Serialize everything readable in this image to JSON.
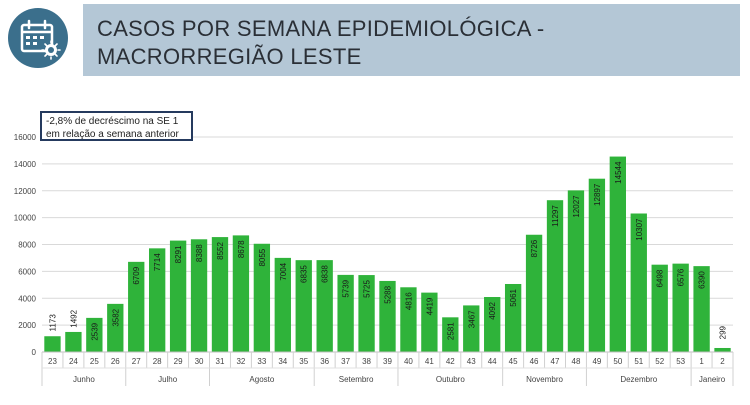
{
  "header": {
    "title_line1": "CASOS POR SEMANA EPIDEMIOLÓGICA -",
    "title_line2": "MACRORREGIÃO LESTE",
    "icon": "calendar-virus-icon",
    "icon_bg": "#3b6f8c",
    "bar_bg": "#b4c7d6"
  },
  "chart_data": {
    "type": "bar",
    "annotation": "-2,8% de decréscimo na SE 1 em relação a semana anterior",
    "categories": [
      "23",
      "24",
      "25",
      "26",
      "27",
      "28",
      "29",
      "30",
      "31",
      "32",
      "33",
      "34",
      "35",
      "36",
      "37",
      "38",
      "39",
      "40",
      "41",
      "42",
      "43",
      "44",
      "45",
      "46",
      "47",
      "48",
      "49",
      "50",
      "51",
      "52",
      "53",
      "1",
      "2"
    ],
    "values": [
      1173,
      1492,
      2539,
      3582,
      6709,
      7714,
      8291,
      8388,
      8552,
      8678,
      8055,
      7004,
      6835,
      6838,
      5739,
      5725,
      5288,
      4816,
      4419,
      2581,
      3467,
      4092,
      5061,
      8726,
      11297,
      12027,
      12897,
      14544,
      10307,
      6498,
      6576,
      6390,
      299
    ],
    "months": [
      {
        "label": "Junho",
        "start": 0,
        "end": 3
      },
      {
        "label": "Julho",
        "start": 4,
        "end": 7
      },
      {
        "label": "Agosto",
        "start": 8,
        "end": 12
      },
      {
        "label": "Setembro",
        "start": 13,
        "end": 16
      },
      {
        "label": "Outubro",
        "start": 17,
        "end": 21
      },
      {
        "label": "Novembro",
        "start": 22,
        "end": 25
      },
      {
        "label": "Dezembro",
        "start": 26,
        "end": 30
      },
      {
        "label": "Janeiro",
        "start": 31,
        "end": 32
      }
    ],
    "yticks": [
      0,
      2000,
      4000,
      6000,
      8000,
      10000,
      12000,
      14000,
      16000
    ],
    "ylim": [
      0,
      16000
    ],
    "bar_color": "#2fb33a",
    "grid": true
  }
}
